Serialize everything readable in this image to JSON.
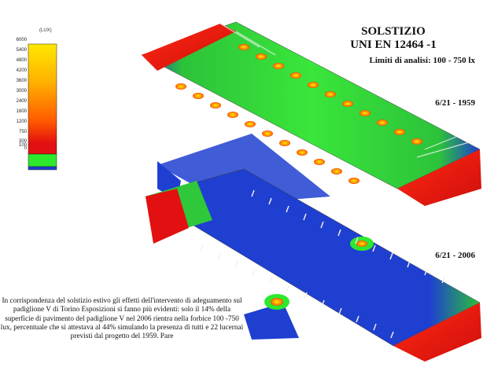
{
  "legend": {
    "unit": "(LUX)",
    "ticks": [
      "6000",
      "5400",
      "4800",
      "4200",
      "3600",
      "3000",
      "2400",
      "1800",
      "1200",
      "750",
      "300",
      "100",
      "0"
    ]
  },
  "title": {
    "line1": "SOLSTIZIO",
    "line2": "UNI EN 12464 -1",
    "limits": "Limiti di analisi: 100 - 750 lx"
  },
  "labels": {
    "top": "6/21 -  1959",
    "bottom": "6/21 -  2006"
  },
  "caption": "In corrispondenza del solstizio estivo gli effetti dell'intervento di adeguamento sul padiglione V di Torino Esposizioni si fanno più evidenti: solo il 14% della superficie di pavimento del padiglione V nel 2006 rientra nella forbice 100 -750 lux, percentuale che si attestava al 44% simulando la presenza di tutti e 22 lucernai previsti dal progetto del 1959. Pare",
  "colors": {
    "blue": "#1f3fd0",
    "green": "#2ee82e",
    "red": "#e41b12",
    "yellow": "#ffe600",
    "orange": "#ff9a00"
  }
}
